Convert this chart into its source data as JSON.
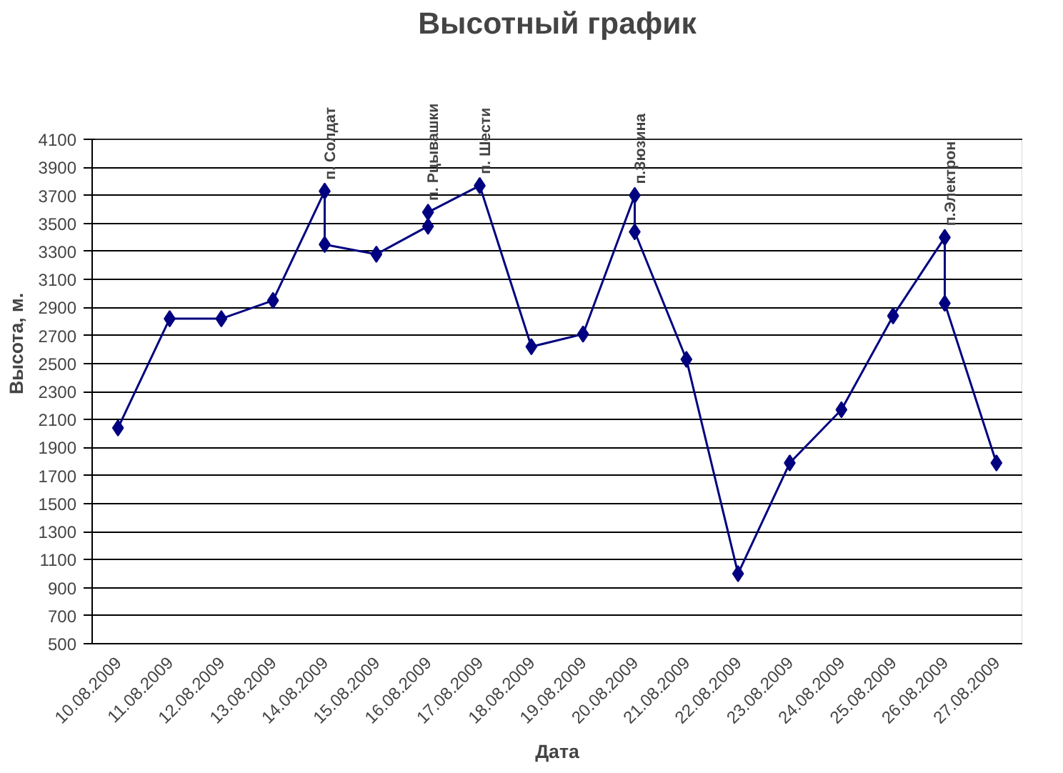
{
  "chart_data": {
    "type": "line",
    "title": "Высотный график",
    "xlabel": "Дата",
    "ylabel": "Высота, м.",
    "categories": [
      "10.08.2009",
      "11.08.2009",
      "12.08.2009",
      "13.08.2009",
      "14.08.2009",
      "15.08.2009",
      "16.08.2009",
      "17.08.2009",
      "18.08.2009",
      "19.08.2009",
      "20.08.2009",
      "21.08.2009",
      "22.08.2009",
      "23.08.2009",
      "24.08.2009",
      "25.08.2009",
      "26.08.2009",
      "27.08.2009"
    ],
    "series": [
      {
        "color": "#000080",
        "x": [
          "10.08.2009",
          "11.08.2009",
          "12.08.2009",
          "13.08.2009",
          "14.08.2009",
          "14.08.2009",
          "15.08.2009",
          "16.08.2009",
          "16.08.2009",
          "17.08.2009",
          "18.08.2009",
          "19.08.2009",
          "20.08.2009",
          "20.08.2009",
          "21.08.2009",
          "22.08.2009",
          "23.08.2009",
          "24.08.2009",
          "25.08.2009",
          "26.08.2009",
          "26.08.2009",
          "27.08.2009"
        ],
        "values": [
          2040,
          2820,
          2820,
          2950,
          3730,
          3350,
          3280,
          3480,
          3580,
          3770,
          2620,
          2710,
          3700,
          3440,
          2530,
          1000,
          1790,
          2170,
          2840,
          3400,
          2930,
          1790
        ]
      }
    ],
    "ylim": [
      500,
      4100
    ],
    "yticks": [
      500,
      700,
      900,
      1100,
      1300,
      1500,
      1700,
      1900,
      2100,
      2300,
      2500,
      2700,
      2900,
      3100,
      3300,
      3500,
      3700,
      3900,
      4100
    ],
    "grid": "y",
    "marker": "diamond",
    "line_style": "solid",
    "annotations": [
      {
        "text": "п. Солдат",
        "x": "14.08.2009",
        "y": 3730
      },
      {
        "text": "п. Рцывашки",
        "x": "16.08.2009",
        "y": 3580
      },
      {
        "text": "п. Шести",
        "x": "17.08.2009",
        "y": 3770
      },
      {
        "text": "п.Зюзина",
        "x": "20.08.2009",
        "y": 3700
      },
      {
        "text": "п.Электрон",
        "x": "26.08.2009",
        "y": 3400
      }
    ]
  }
}
